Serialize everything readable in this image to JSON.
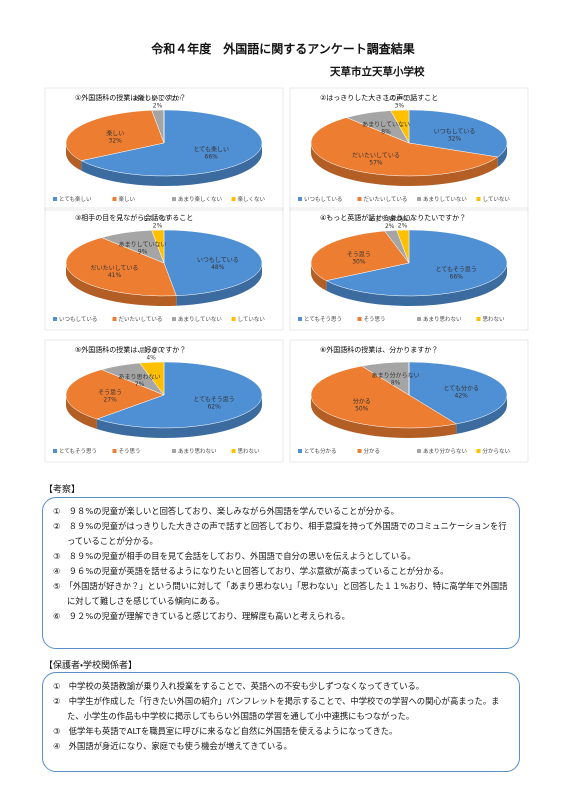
{
  "header": {
    "title": "令和４年度　外国語に関するアンケート調査結果",
    "school": "天草市立天草小学校"
  },
  "chart_data": [
    {
      "type": "pie",
      "title": "①外国語科の授業は楽しいですか？",
      "categories": [
        "とても楽しい",
        "楽しい",
        "あまり楽しくない",
        "楽しくない"
      ],
      "values": [
        66,
        32,
        2,
        0
      ],
      "value_labels": [
        "66%",
        "32%",
        "2%",
        null
      ],
      "colors": [
        "#4f8fd4",
        "#ed7d31",
        "#a5a5a5",
        "#ffc000"
      ],
      "legend": "bottom"
    },
    {
      "type": "pie",
      "title": "②はっきりした大きさの声で話すこと",
      "categories": [
        "いつもしている",
        "だいたいしている",
        "あまりしていない",
        "していない"
      ],
      "values": [
        32,
        57,
        8,
        3
      ],
      "value_labels": [
        "32%",
        "57%",
        "8%",
        "3%"
      ],
      "colors": [
        "#4f8fd4",
        "#ed7d31",
        "#a5a5a5",
        "#ffc000"
      ],
      "legend": "bottom"
    },
    {
      "type": "pie",
      "title": "③相手の目を見ながら会話をすること",
      "categories": [
        "いつもしている",
        "だいたいしている",
        "あまりしていない",
        "していない"
      ],
      "values": [
        48,
        41,
        9,
        2
      ],
      "value_labels": [
        "48%",
        "41%",
        "9%",
        "2%"
      ],
      "colors": [
        "#4f8fd4",
        "#ed7d31",
        "#a5a5a5",
        "#ffc000"
      ],
      "legend": "bottom"
    },
    {
      "type": "pie",
      "title": "④もっと英語が話せるようになりたいですか？",
      "categories": [
        "とてもそう思う",
        "そう思う",
        "あまり思わない",
        "思わない"
      ],
      "values": [
        66,
        30,
        2,
        2
      ],
      "value_labels": [
        "66%",
        "30%",
        "2%",
        "2%"
      ],
      "colors": [
        "#4f8fd4",
        "#ed7d31",
        "#a5a5a5",
        "#ffc000"
      ],
      "legend": "bottom"
    },
    {
      "type": "pie",
      "title": "⑤外国語科の授業は、好きですか？",
      "categories": [
        "とてもそう思う",
        "そう思う",
        "あまり思わない",
        "思わない"
      ],
      "values": [
        62,
        27,
        7,
        4
      ],
      "value_labels": [
        "62%",
        "27%",
        "7%",
        "4%"
      ],
      "colors": [
        "#4f8fd4",
        "#ed7d31",
        "#a5a5a5",
        "#ffc000"
      ],
      "legend": "bottom"
    },
    {
      "type": "pie",
      "title": "⑥外国語科の授業は、分かりますか？",
      "categories": [
        "とても分かる",
        "分かる",
        "あまり分からない",
        "分からない"
      ],
      "values": [
        42,
        50,
        8,
        0
      ],
      "value_labels": [
        "42%",
        "50%",
        "8%",
        null
      ],
      "colors": [
        "#4f8fd4",
        "#ed7d31",
        "#a5a5a5",
        "#ffc000"
      ],
      "legend": "bottom"
    }
  ],
  "sections": [
    {
      "heading": "【考察】",
      "items": [
        "①　９８%の児童が楽しいと回答しており、楽しみながら外国語を学んでいることが分かる。",
        "②　８９%の児童がはっきりした大きさの声で話すと回答しており、相手意識を持って外国語でのコミュニケーションを行っていることが分かる。",
        "③　８９%の児童が相手の目を見て会話をしており、外国語で自分の思いを伝えようとしている。",
        "④　９６%の児童が英語を話せるようになりたいと回答しており、学ぶ意欲が高まっていることが分かる。",
        "⑤　「外国語が好きか？」という問いに対して「あまり思わない」「思わない」と回答した１１%おり、特に高学年で外国語に対して難しさを感じている傾向にある。",
        "⑥　９２%の児童が理解できていると感じており、理解度も高いと考えられる。"
      ]
    },
    {
      "heading": "【保護者・学校関係者】",
      "items": [
        "①　中学校の英語教諭が乗り入れ授業をすることで、英語への不安も少しずつなくなってきている。",
        "②　中学生が作成した「行きたい外国の紹介」パンフレットを掲示することで、中学校での学習への関心が高まった。また、小学生の作品も中学校に掲示してもらい外国語の学習を通して小中連携にもつながった。",
        "③　低学年も英語でALTを職員室に呼びに来るなど自然に外国語を使えるようになってきた。",
        "④　外国語が身近になり、家庭でも使う機会が増えてきている。"
      ]
    }
  ]
}
